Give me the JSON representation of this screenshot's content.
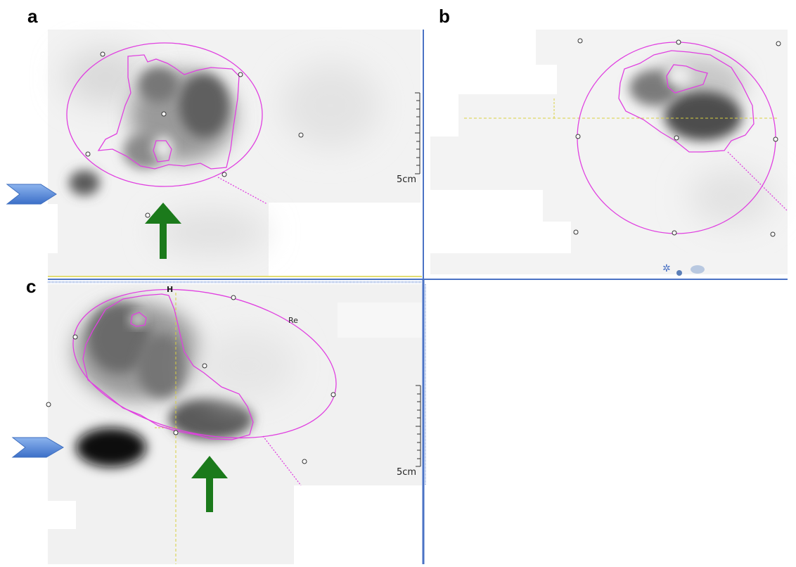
{
  "panels": [
    {
      "label": "a",
      "scale": "5cm"
    },
    {
      "label": "b",
      "scale": ""
    },
    {
      "label": "c",
      "scale": "5cm",
      "marker": "H",
      "roi_text": "Re"
    }
  ],
  "colors": {
    "roi": "#e040e0",
    "divider": "#4a72c4",
    "arrow": "#1b7a1b",
    "arrowhead_fill": "#5b8fd8",
    "crosshair": "#d8d040"
  },
  "icons": [
    "arrowhead-icon",
    "up-arrow-icon"
  ]
}
